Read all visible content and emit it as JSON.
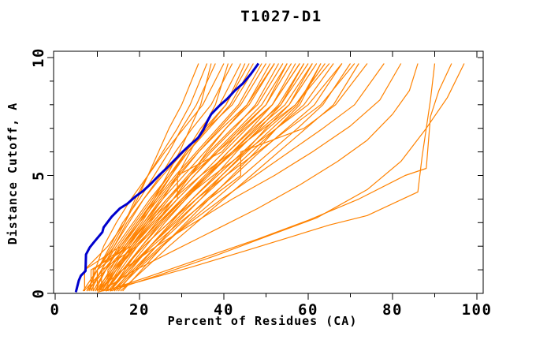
{
  "chart_data": {
    "type": "line",
    "title": "T1027-D1",
    "xlabel": "Percent of Residues (CA)",
    "ylabel": "Distance Cutoff, A",
    "xlim": [
      0,
      100
    ],
    "ylim": [
      0,
      10
    ],
    "grid": "off",
    "legend": "none",
    "x_major_ticks": [
      0,
      20,
      40,
      60,
      80,
      100
    ],
    "x_minor_ticks": [
      10,
      30,
      50,
      70,
      90
    ],
    "y_major_ticks": [
      0,
      5,
      10
    ],
    "y_minor_ticks": [
      1,
      2,
      3,
      4,
      6,
      7,
      8,
      9
    ],
    "x_tick_labels": [
      "0",
      "20",
      "40",
      "60",
      "80",
      "100"
    ],
    "y_tick_labels": [
      "0",
      "5",
      "10"
    ],
    "colors": {
      "model_line": "#ff8200",
      "highlight_line": "#0000cd",
      "frame": "#000000",
      "text": "#000000",
      "background": "#ffffff"
    },
    "y_breaks": [
      0.1,
      1,
      2,
      3,
      4,
      5,
      6,
      7,
      8,
      9.75
    ],
    "model_series_x": [
      [
        6.6,
        10,
        13.5,
        16.5,
        19.5,
        22,
        24.5,
        27,
        30,
        34
      ],
      [
        7,
        7,
        12.5,
        16.5,
        19,
        22,
        25.5,
        29,
        32,
        36
      ],
      [
        7.5,
        10,
        13,
        16,
        20,
        23.5,
        27,
        30,
        33.5,
        38
      ],
      [
        8,
        9.5,
        11.5,
        14.5,
        18,
        22,
        26,
        30.5,
        35,
        40
      ],
      [
        8.5,
        11,
        14,
        17.5,
        21,
        25,
        28.5,
        32.5,
        37,
        42
      ],
      [
        9,
        9,
        16.5,
        20.5,
        24,
        27.5,
        31,
        34.5,
        39,
        44
      ],
      [
        9.5,
        12,
        15,
        19,
        23,
        27,
        31,
        35.5,
        40.5,
        46
      ],
      [
        10,
        10,
        14,
        17,
        21,
        25.5,
        30.5,
        36,
        42,
        48
      ],
      [
        10.5,
        13.5,
        17,
        21,
        25,
        29.5,
        34,
        39,
        44,
        50
      ],
      [
        11,
        11,
        19.5,
        24,
        28,
        32,
        36,
        40.5,
        46,
        52
      ],
      [
        11.5,
        14.5,
        18,
        22,
        26.5,
        31.5,
        36.5,
        42,
        48,
        54
      ],
      [
        12,
        15,
        18.5,
        23,
        28,
        33,
        38.5,
        44,
        50,
        56
      ],
      [
        12.5,
        12.5,
        17.5,
        21.5,
        26.5,
        32,
        38.5,
        45,
        51.5,
        58
      ],
      [
        13,
        16.5,
        20.5,
        25,
        30,
        35.5,
        41,
        47,
        53.5,
        60
      ],
      [
        7,
        7,
        15.5,
        19.5,
        23.5,
        27.5,
        31.5,
        36,
        40.5,
        45
      ],
      [
        8,
        11,
        14.5,
        18.5,
        22.5,
        27,
        31.5,
        36.5,
        41.5,
        47
      ],
      [
        9,
        12,
        15.5,
        19.5,
        24,
        28.5,
        33.5,
        38.5,
        43.5,
        49
      ],
      [
        10,
        13,
        16.5,
        21,
        25.5,
        30.5,
        35.5,
        40.5,
        45.5,
        51
      ],
      [
        11,
        14,
        18,
        22.5,
        27,
        32,
        37,
        42.5,
        47.5,
        53
      ],
      [
        12,
        15.5,
        19.5,
        24,
        29,
        29,
        39.5,
        44.5,
        50,
        55
      ],
      [
        13,
        17,
        21.5,
        26,
        31,
        36,
        41,
        46.5,
        51.5,
        57
      ],
      [
        14,
        18,
        22.5,
        27.5,
        32.5,
        38,
        43,
        48.5,
        53.5,
        59
      ],
      [
        15,
        19,
        24,
        29,
        34.5,
        39.5,
        45,
        50,
        55.5,
        61
      ],
      [
        16,
        20.5,
        25.5,
        31,
        36.5,
        42,
        47.5,
        52.5,
        58,
        63
      ],
      [
        8.5,
        8.5,
        18,
        23,
        28,
        33,
        38,
        43.5,
        49,
        55
      ],
      [
        9.5,
        13.5,
        18.5,
        23.5,
        29,
        34.5,
        40,
        45.5,
        51.5,
        58
      ],
      [
        10.5,
        14.5,
        19.5,
        25,
        30.5,
        36,
        42,
        48,
        54.5,
        61
      ],
      [
        11.5,
        16,
        21,
        27,
        32.5,
        38.5,
        44.5,
        50.5,
        57,
        64
      ],
      [
        12.5,
        17,
        22.5,
        28.5,
        34.5,
        40.5,
        46.5,
        52.5,
        59,
        66
      ],
      [
        13.5,
        18.5,
        24,
        30,
        36,
        42.5,
        48.5,
        55,
        61.5,
        68
      ],
      [
        14.5,
        19.5,
        25.5,
        31.5,
        38,
        44.5,
        51,
        57.5,
        63.5,
        70
      ],
      [
        15.5,
        21,
        27,
        33.5,
        40,
        46.5,
        53,
        59.5,
        66,
        72
      ],
      [
        10,
        10,
        17,
        22,
        28,
        34.5,
        42,
        49.5,
        57,
        65
      ],
      [
        11,
        14.5,
        19,
        24.5,
        30.5,
        37.5,
        45,
        52.5,
        60,
        68
      ],
      [
        12,
        16,
        21,
        27,
        33.5,
        40.5,
        48,
        55.5,
        63,
        71
      ],
      [
        13,
        17.5,
        23,
        29.5,
        36.5,
        44,
        44,
        59,
        66.5,
        74
      ],
      [
        14,
        19,
        25,
        32,
        39.5,
        47.5,
        55.5,
        63.5,
        71,
        78
      ],
      [
        9,
        12,
        15.5,
        20,
        24.5,
        29,
        34,
        39.5,
        45.5,
        52
      ],
      [
        10,
        14,
        19,
        24.5,
        30,
        36,
        42.5,
        49,
        55.5,
        62
      ],
      [
        12,
        16,
        20.5,
        25.5,
        31,
        36.5,
        42,
        47.5,
        53,
        59
      ],
      [
        13,
        17.5,
        22.5,
        28,
        33.5,
        39.5,
        45.5,
        51.5,
        57.5,
        63
      ],
      [
        7.5,
        12,
        17,
        21.5,
        25.5,
        29,
        32,
        35,
        38,
        41
      ],
      [
        6.8,
        11.5,
        16,
        20,
        23.5,
        26.5,
        29.5,
        32,
        34.5,
        37
      ]
    ],
    "model_series_points": [
      [
        [
          13,
          0.1
        ],
        [
          25,
          0.8
        ],
        [
          38,
          1.6
        ],
        [
          50,
          2.4
        ],
        [
          62,
          3.2
        ],
        [
          74,
          4.4
        ],
        [
          82,
          5.6
        ],
        [
          88,
          7
        ],
        [
          93,
          8.3
        ],
        [
          97,
          9.75
        ]
      ],
      [
        [
          12,
          0.1
        ],
        [
          22,
          0.7
        ],
        [
          35,
          1.5
        ],
        [
          48,
          2.3
        ],
        [
          60,
          3.1
        ],
        [
          72,
          4
        ],
        [
          83,
          5
        ],
        [
          88,
          5.3
        ],
        [
          89,
          7.5
        ],
        [
          91,
          8.6
        ],
        [
          94,
          9.75
        ]
      ],
      [
        [
          10,
          0.05
        ],
        [
          20,
          0.5
        ],
        [
          32,
          1.1
        ],
        [
          45,
          1.8
        ],
        [
          56,
          2.4
        ],
        [
          65,
          2.9
        ],
        [
          74,
          3.3
        ],
        [
          86,
          4.3
        ],
        [
          87,
          5.8
        ],
        [
          88,
          7
        ],
        [
          89,
          8.2
        ],
        [
          90,
          9.75
        ]
      ],
      [
        [
          11,
          0.1
        ],
        [
          18,
          0.9
        ],
        [
          28,
          1.8
        ],
        [
          38,
          2.7
        ],
        [
          48,
          3.6
        ],
        [
          58,
          4.6
        ],
        [
          67,
          5.6
        ],
        [
          74,
          6.5
        ],
        [
          80,
          7.6
        ],
        [
          84,
          8.6
        ],
        [
          86,
          9.75
        ]
      ],
      [
        [
          10,
          0.1
        ],
        [
          16,
          1
        ],
        [
          24,
          2
        ],
        [
          33,
          3
        ],
        [
          42,
          4
        ],
        [
          52,
          5
        ],
        [
          61,
          6
        ],
        [
          70,
          7.1
        ],
        [
          77,
          8.2
        ],
        [
          82,
          9.75
        ]
      ]
    ],
    "highlight_series_points": [
      [
        4.9,
        0.05
      ],
      [
        5.6,
        0.55
      ],
      [
        6.1,
        0.75
      ],
      [
        7.2,
        0.95
      ],
      [
        7.3,
        1.65
      ],
      [
        8.2,
        1.95
      ],
      [
        9.1,
        2.15
      ],
      [
        11.2,
        2.6
      ],
      [
        11.5,
        2.8
      ],
      [
        13.4,
        3.25
      ],
      [
        15.3,
        3.6
      ],
      [
        17.1,
        3.8
      ],
      [
        19,
        4.1
      ],
      [
        20.9,
        4.35
      ],
      [
        22.7,
        4.65
      ],
      [
        24.6,
        5
      ],
      [
        26.4,
        5.3
      ],
      [
        28.3,
        5.65
      ],
      [
        30.2,
        6
      ],
      [
        32,
        6.3
      ],
      [
        33.9,
        6.6
      ],
      [
        35.2,
        6.95
      ],
      [
        36.1,
        7.3
      ],
      [
        37,
        7.6
      ],
      [
        38.9,
        7.95
      ],
      [
        40.8,
        8.25
      ],
      [
        42.6,
        8.6
      ],
      [
        44.5,
        8.9
      ],
      [
        46.4,
        9.3
      ],
      [
        48.2,
        9.75
      ]
    ]
  }
}
